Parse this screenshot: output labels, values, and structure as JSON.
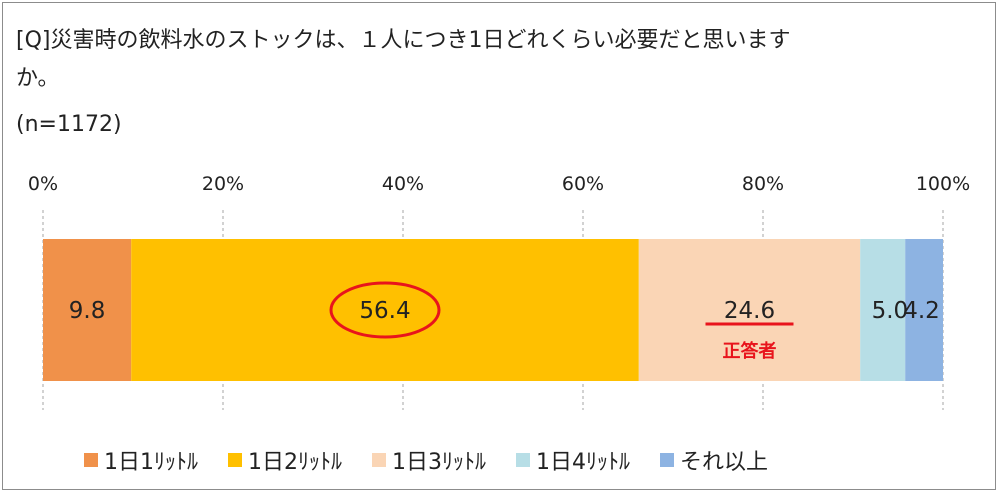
{
  "title": {
    "line1": "[Q]災害時の飲料水のストックは、１人につき1日どれくらい必要だと思います",
    "line2": "か。",
    "n": "(n=1172)"
  },
  "annotation": {
    "correct_label": "正答者",
    "color": "#e8141c"
  },
  "chart_data": {
    "type": "bar",
    "orientation": "horizontal-stacked",
    "x_ticks": [
      "0%",
      "20%",
      "40%",
      "60%",
      "80%",
      "100%"
    ],
    "xlim": [
      0,
      100
    ],
    "grid": true,
    "legend_position": "bottom",
    "series": [
      {
        "name": "1日1ﾘｯﾄﾙ",
        "value": 9.8,
        "label": "9.8",
        "color": "#f0914a"
      },
      {
        "name": "1日2ﾘｯﾄﾙ",
        "value": 56.4,
        "label": "56.4",
        "color": "#ffc000"
      },
      {
        "name": "1日3ﾘｯﾄﾙ",
        "value": 24.6,
        "label": "24.6",
        "color": "#fad5b5"
      },
      {
        "name": "1日4ﾘｯﾄﾙ",
        "value": 5.0,
        "label": "5.0",
        "color": "#b7dee6"
      },
      {
        "name": "それ以上",
        "value": 4.2,
        "label": "4.2",
        "color": "#8db3e2"
      }
    ]
  }
}
